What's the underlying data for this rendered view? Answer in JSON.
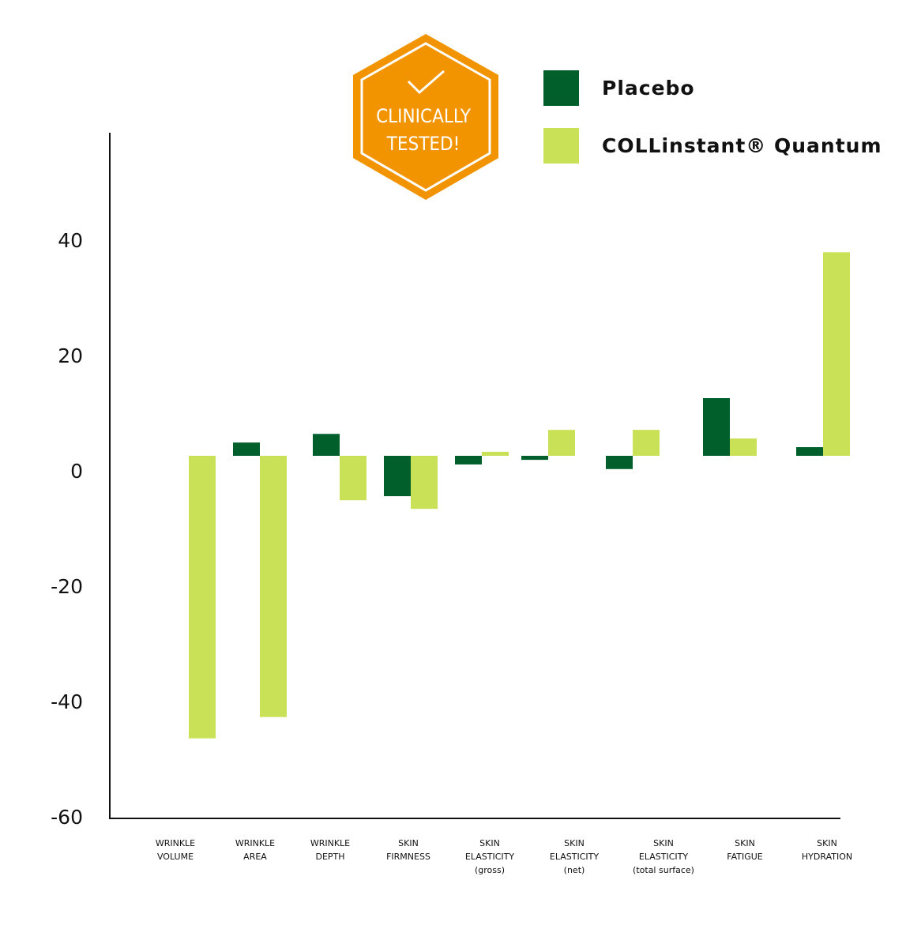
{
  "badge": {
    "line1": "CLINICALLY",
    "line2": "TESTED!",
    "icon": "checkmark-icon",
    "color": "#F29400"
  },
  "legend": [
    {
      "label": "Placebo",
      "color": "#005F2B"
    },
    {
      "label": "COLLinstant® Quantum",
      "color": "#C8E157"
    }
  ],
  "chart_data": {
    "type": "bar",
    "title": "",
    "xlabel": "",
    "ylabel": "",
    "ylim": [
      -60,
      50
    ],
    "yticks": [
      "40",
      "20",
      "0",
      "-20",
      "-40",
      "-60"
    ],
    "ytick_values": [
      40,
      20,
      0,
      -20,
      -40,
      -60
    ],
    "categories": [
      [
        "WRINKLE",
        "VOLUME"
      ],
      [
        "WRINKLE",
        "AREA"
      ],
      [
        "WRINKLE",
        "DEPTH"
      ],
      [
        "SKIN",
        "FIRMNESS"
      ],
      [
        "SKIN",
        "ELASTICITY",
        "(gross)"
      ],
      [
        "SKIN",
        "ELASTICITY",
        "(net)"
      ],
      [
        "SKIN",
        "ELASTICITY",
        "(total surface)"
      ],
      [
        "SKIN",
        "FATIGUE"
      ],
      [
        "SKIN",
        "HYDRATION"
      ]
    ],
    "series": [
      {
        "name": "Placebo",
        "values": [
          0,
          2.3,
          3.8,
          -7,
          -1.5,
          -0.7,
          -2.3,
          10,
          1.5
        ]
      },
      {
        "name": "COLLinstant® Quantum",
        "values": [
          -49,
          -45.3,
          -7.7,
          -9.2,
          0.7,
          4.5,
          4.5,
          3,
          35.3
        ]
      }
    ],
    "grid": false,
    "legend_position": "top-right"
  }
}
